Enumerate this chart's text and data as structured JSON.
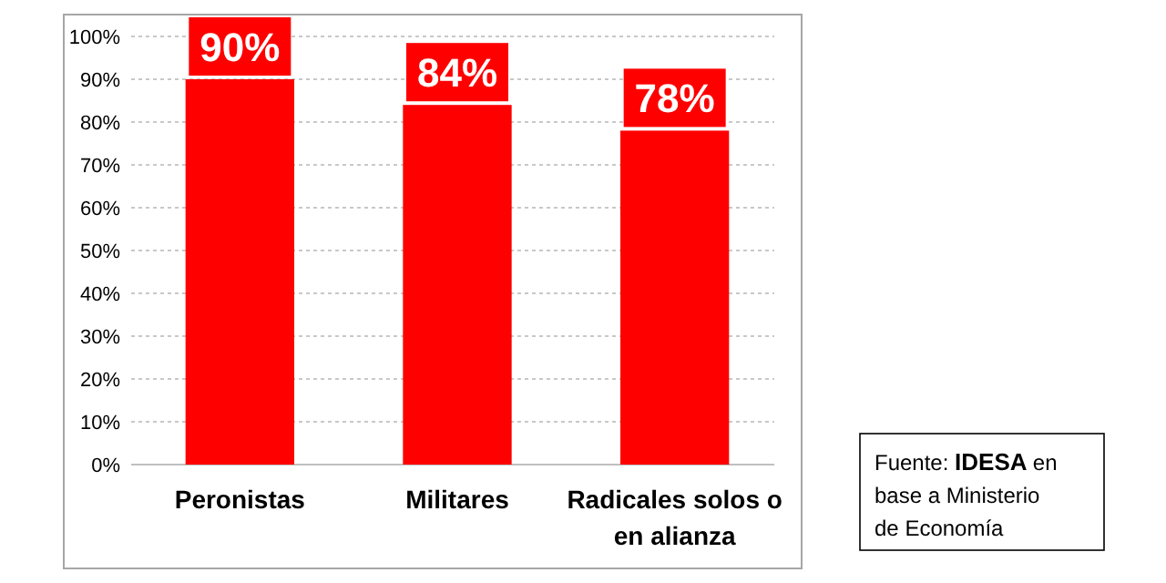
{
  "chart_data": {
    "type": "bar",
    "categories": [
      "Peronistas",
      "Militares",
      "Radicales solos o en alianza"
    ],
    "values": [
      90,
      84,
      78
    ],
    "color": "#ff0000",
    "value_labels": [
      "90%",
      "84%",
      "78%"
    ],
    "ylim": [
      0,
      100
    ],
    "yticks": [
      {
        "value": 0,
        "label": "0%"
      },
      {
        "value": 10,
        "label": "10%"
      },
      {
        "value": 20,
        "label": "20%"
      },
      {
        "value": 30,
        "label": "30%"
      },
      {
        "value": 40,
        "label": "40%"
      },
      {
        "value": 50,
        "label": "50%"
      },
      {
        "value": 60,
        "label": "60%"
      },
      {
        "value": 70,
        "label": "70%"
      },
      {
        "value": 80,
        "label": "80%"
      },
      {
        "value": 90,
        "label": "90%"
      },
      {
        "value": 100,
        "label": "100%"
      }
    ],
    "grid": "y",
    "annotations": [
      "Fuente: IDESA en base a Ministerio de Economía"
    ]
  }
}
